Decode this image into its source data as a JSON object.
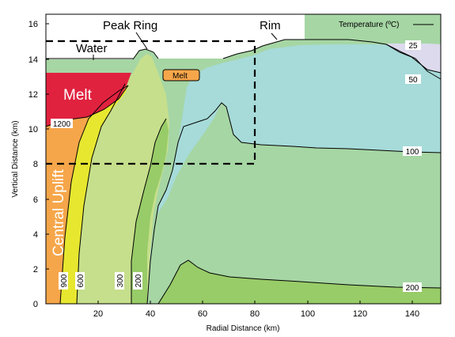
{
  "labels": {
    "xlabel": "Radial Distance (km)",
    "ylabel": "Vertical Distance (km)",
    "legend": "Temperature (ºC)",
    "peak_ring": "Peak Ring",
    "rim": "Rim",
    "water": "Water",
    "melt": "Melt",
    "melt_small": "Melt",
    "central_uplift": "Central Uplift"
  },
  "isotherm_labels": [
    "25",
    "50",
    "100",
    "200",
    "1200",
    "900",
    "600",
    "300",
    "200"
  ],
  "colors": {
    "t25": "#dcdaec",
    "t50": "#a6dbd9",
    "t100": "#a6d6a4",
    "t200": "#98cc68",
    "t300": "#c6df8c",
    "t600": "#e7e730",
    "t900": "#f6a64a",
    "melt": "#e0223f"
  },
  "chart_data": {
    "type": "contour",
    "title": "",
    "xlabel": "Radial Distance (km)",
    "ylabel": "Vertical Distance (km)",
    "xlim": [
      0,
      150
    ],
    "ylim": [
      0,
      16.5
    ],
    "xticks": [
      20,
      40,
      60,
      80,
      100,
      120,
      140
    ],
    "yticks": [
      0,
      2,
      4,
      6,
      8,
      10,
      12,
      14,
      16
    ],
    "series": [
      {
        "name": "25",
        "x": [
          68,
          80,
          90,
          100,
          115,
          125,
          150
        ],
        "y": [
          14.0,
          14.4,
          14.8,
          14.8,
          14.7,
          14.0,
          13.8
        ]
      },
      {
        "name": "50",
        "x": [
          100,
          120,
          130,
          140,
          150
        ],
        "y": [
          14.8,
          14.4,
          13.5,
          12.8,
          12.6
        ]
      },
      {
        "name": "100",
        "x": [
          62,
          67,
          72,
          90,
          110,
          130,
          150
        ],
        "y": [
          9.5,
          11.4,
          9.7,
          9.1,
          9.0,
          8.8,
          8.6
        ]
      },
      {
        "name": "200",
        "x": [
          48,
          55,
          60,
          70,
          90,
          120,
          150
        ],
        "y": [
          0.2,
          2.4,
          1.6,
          1.8,
          1.7,
          1.2,
          0.9
        ]
      },
      {
        "name": "1200",
        "x": [
          0,
          10,
          20,
          30
        ],
        "y": [
          10.2,
          10.5,
          11.5,
          13.4
        ]
      },
      {
        "name": "900",
        "x": [
          2,
          4,
          8,
          14,
          24,
          32
        ],
        "y": [
          0,
          3,
          7,
          10,
          12,
          13.5
        ]
      },
      {
        "name": "600",
        "x": [
          7,
          10,
          14,
          20,
          28,
          34
        ],
        "y": [
          0,
          3,
          6,
          9,
          11.5,
          13
        ]
      },
      {
        "name": "300",
        "x": [
          24,
          26,
          30,
          36,
          38
        ],
        "y": [
          0,
          3,
          7,
          11,
          13
        ]
      }
    ],
    "regions": [
      "Melt",
      "Central Uplift",
      "Water",
      "Peak Ring",
      "Rim"
    ],
    "box": {
      "x": [
        0,
        80
      ],
      "y": [
        8,
        15
      ]
    },
    "legend_position": "top-right"
  }
}
